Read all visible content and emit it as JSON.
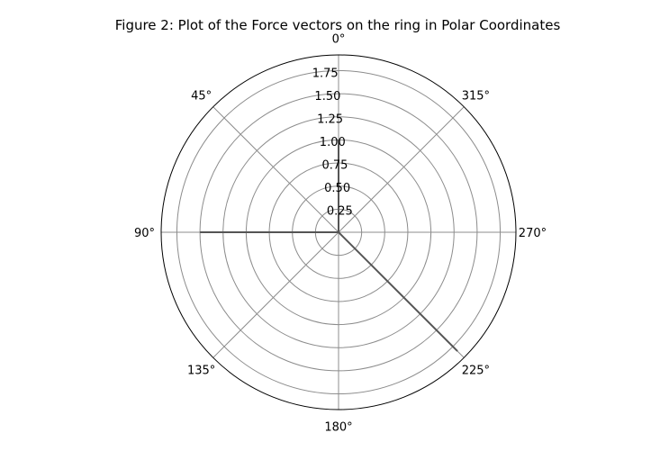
{
  "chart_data": {
    "type": "polar",
    "title": "Figure 2: Plot of the Force vectors on the ring in Polar Coordinates",
    "theta_zero_location": "top",
    "theta_direction": "counterclockwise",
    "theta_tick_labels": [
      "0°",
      "45°",
      "90°",
      "135°",
      "180°",
      "225°",
      "270°",
      "315°"
    ],
    "theta_ticks_deg": [
      0,
      45,
      90,
      135,
      180,
      225,
      270,
      315
    ],
    "r_tick_labels": [
      "0.25",
      "0.50",
      "0.75",
      "1.00",
      "1.25",
      "1.50",
      "1.75"
    ],
    "r_ticks": [
      0.25,
      0.5,
      0.75,
      1.0,
      1.25,
      1.5,
      1.75
    ],
    "rlim": [
      0,
      1.92
    ],
    "grid": true,
    "series": [
      {
        "vectors": [
          {
            "theta_deg": 0,
            "r": 1.0
          },
          {
            "theta_deg": 90,
            "r": 1.5
          },
          {
            "theta_deg": 225,
            "r": 1.82
          }
        ]
      }
    ],
    "colors": {
      "vector": "#555555",
      "grid": "#8c8c8c",
      "frame": "#000000"
    }
  }
}
